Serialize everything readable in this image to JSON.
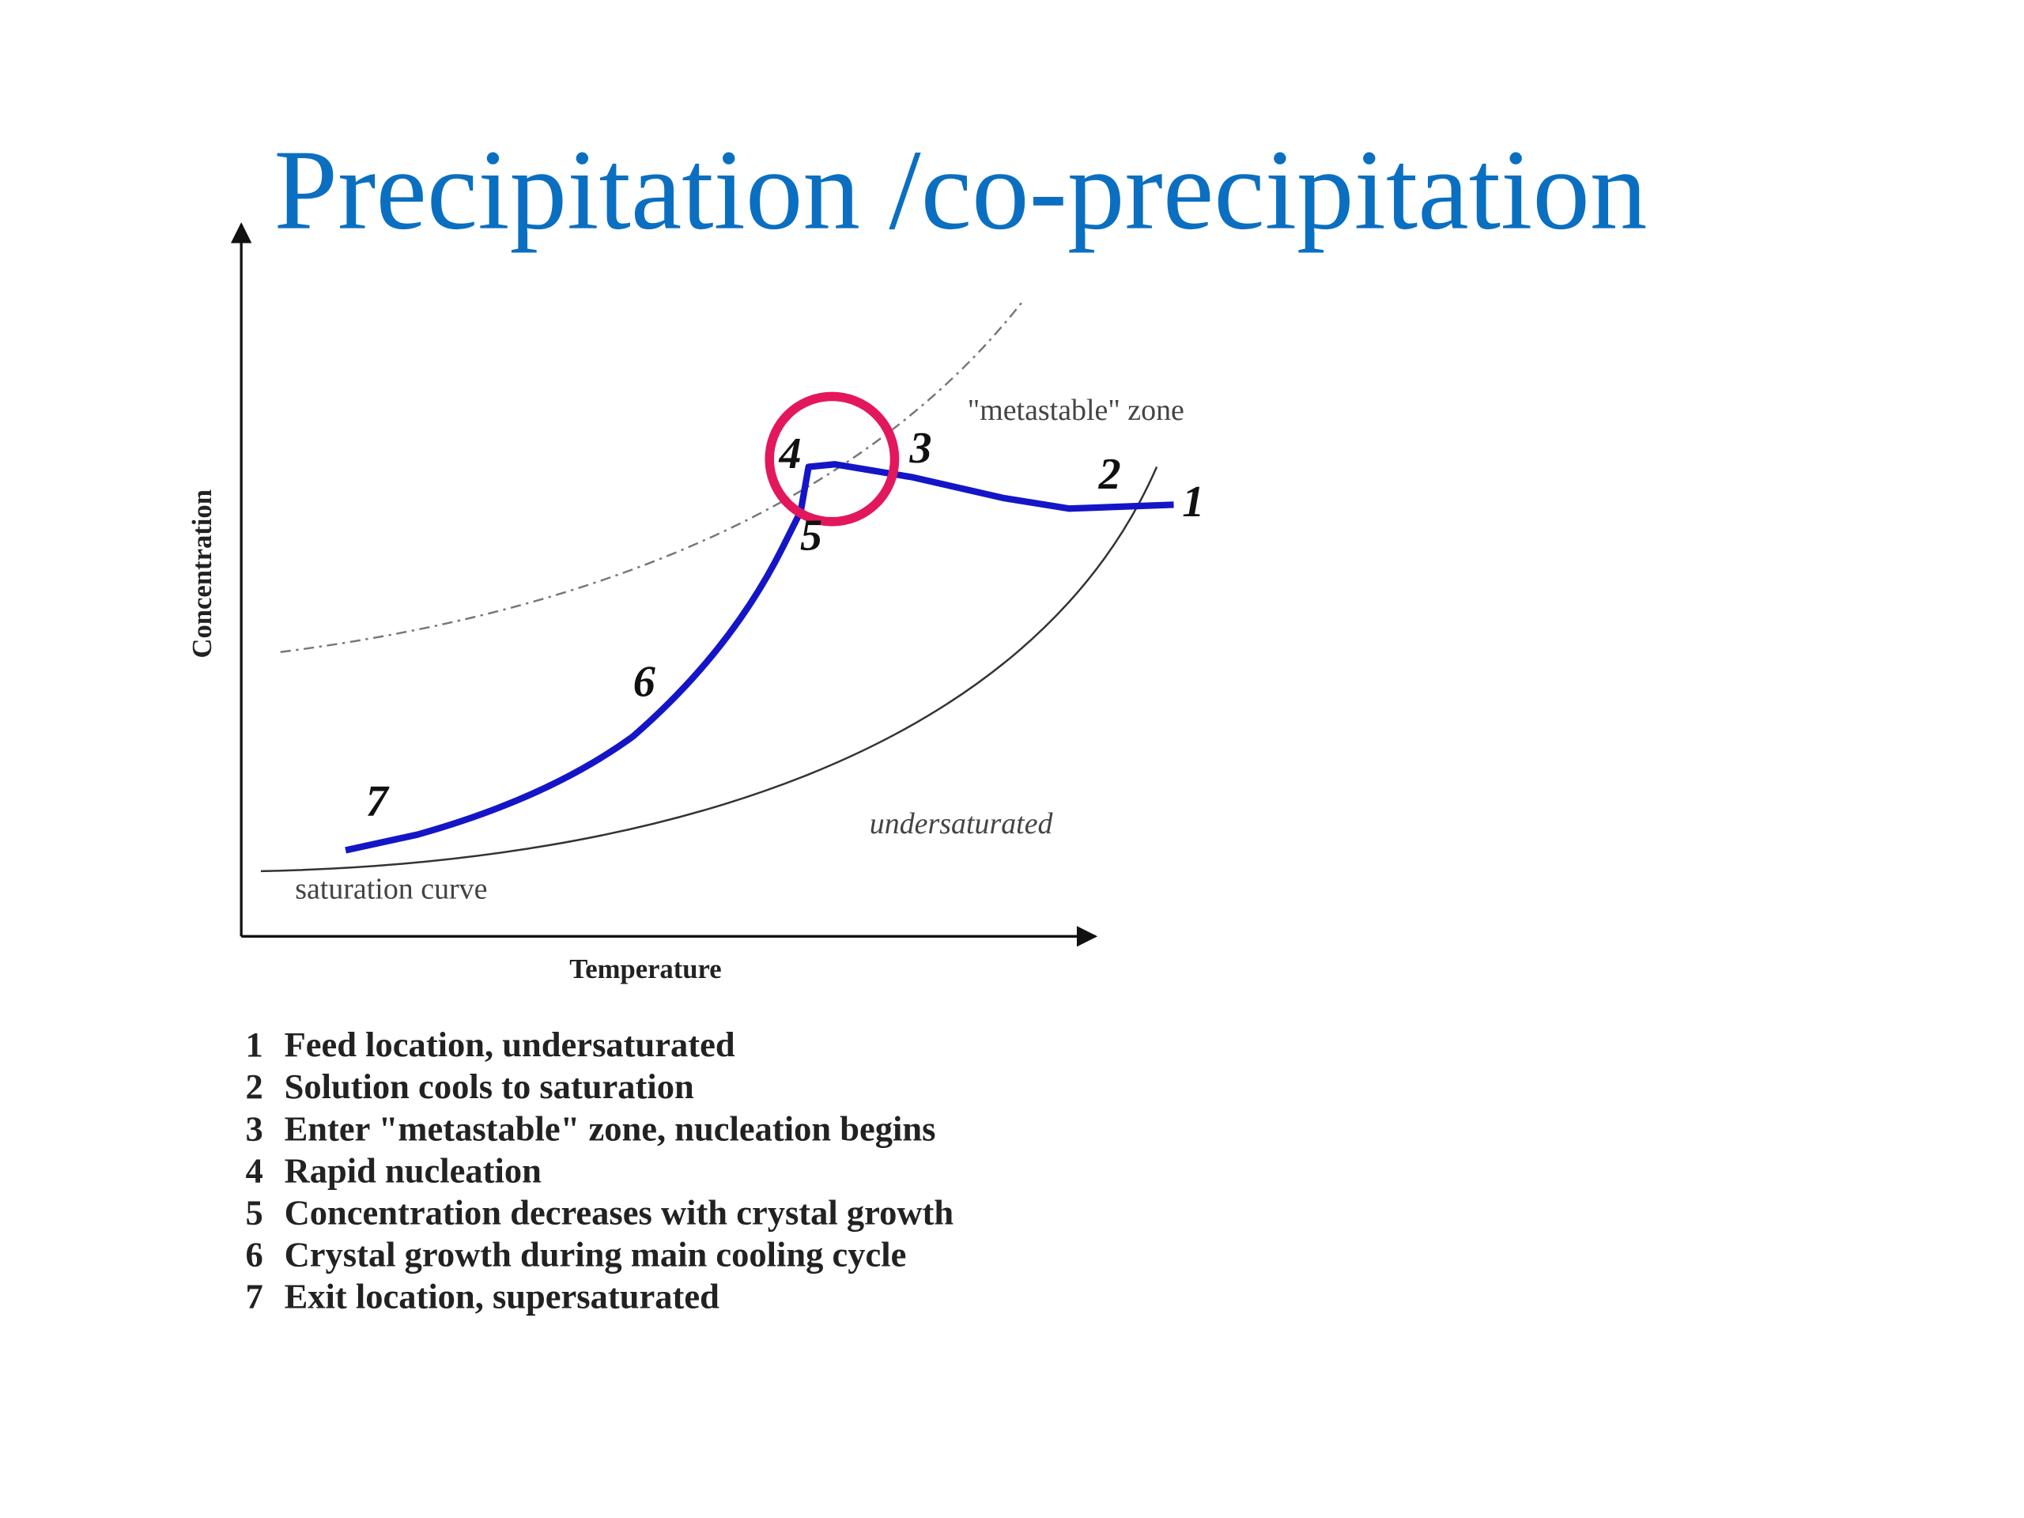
{
  "title": "Precipitation /co-precipitation",
  "diagram": {
    "y_axis_label": "Concentration",
    "x_axis_label": "Temperature",
    "zone_labels": {
      "metastable": "\"metastable\" zone",
      "undersaturated": "undersaturated",
      "saturation": "saturation curve"
    },
    "points": [
      "1",
      "2",
      "3",
      "4",
      "5",
      "6",
      "7"
    ]
  },
  "legend": [
    {
      "number": "1",
      "text": "Feed location, undersaturated"
    },
    {
      "number": "2",
      "text": "Solution cools to saturation"
    },
    {
      "number": "3",
      "text": "Enter \"metastable\" zone, nucleation begins"
    },
    {
      "number": "4",
      "text": "Rapid nucleation"
    },
    {
      "number": "5",
      "text": "Concentration decreases with crystal growth"
    },
    {
      "number": "6",
      "text": "Crystal growth during main cooling cycle"
    },
    {
      "number": "7",
      "text": "Exit location, supersaturated"
    }
  ]
}
